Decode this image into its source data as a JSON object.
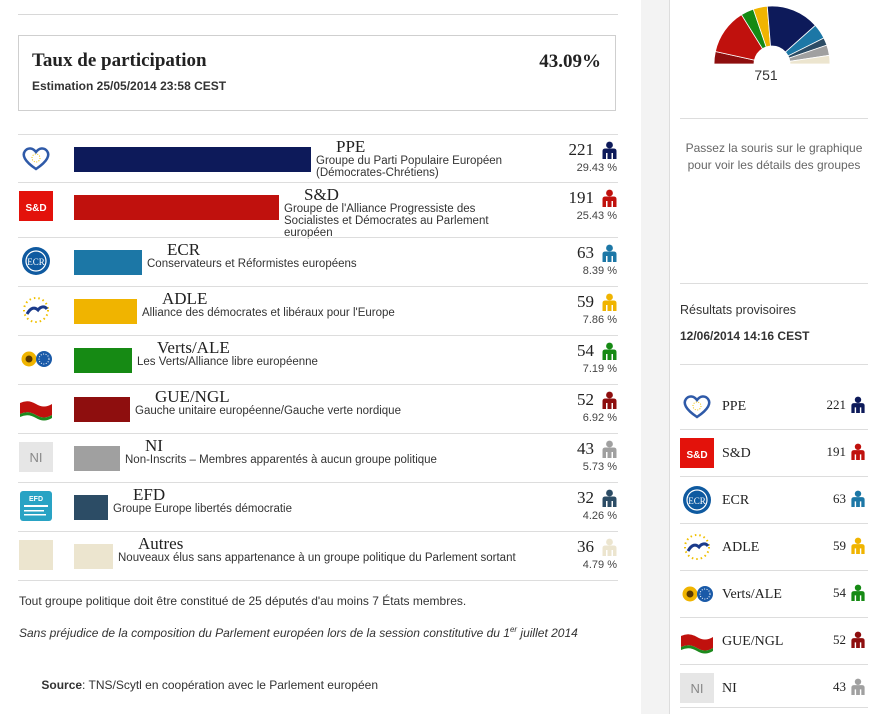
{
  "turnout": {
    "title": "Taux de participation",
    "estimate": "Estimation 25/05/2014 23:58 CEST",
    "value": "43.09%"
  },
  "groups": [
    {
      "abbr": "PPE",
      "desc1": "Groupe du Parti Populaire Européen",
      "desc2": "(Démocrates-Chrétiens)",
      "desc3": "",
      "seats": "221",
      "pct": "29.43 %",
      "color": "#0d1a5a",
      "bar_pct": 29.43,
      "icon": "ppe-heart-logo-icon"
    },
    {
      "abbr": "S&D",
      "desc1": "Groupe de l'Alliance Progressiste des",
      "desc2": "Socialistes et Démocrates au Parlement",
      "desc3": "européen",
      "seats": "191",
      "pct": "25.43 %",
      "color": "#c0110d",
      "bar_pct": 25.43,
      "icon": "sd-logo-icon",
      "logo_text": "S&D"
    },
    {
      "abbr": "ECR",
      "desc1": "Conservateurs et Réformistes européens",
      "desc2": "",
      "desc3": "",
      "seats": "63",
      "pct": "8.39 %",
      "color": "#1c77a6",
      "bar_pct": 8.39,
      "icon": "ecr-logo-icon",
      "logo_text": "ECR"
    },
    {
      "abbr": "ADLE",
      "desc1": "Alliance des démocrates et libéraux pour l'Europe",
      "desc2": "",
      "desc3": "",
      "seats": "59",
      "pct": "7.86 %",
      "color": "#f0b400",
      "bar_pct": 7.86,
      "icon": "adle-logo-icon"
    },
    {
      "abbr": "Verts/ALE",
      "desc1": "Les Verts/Alliance libre européenne",
      "desc2": "",
      "desc3": "",
      "seats": "54",
      "pct": "7.19 %",
      "color": "#168a14",
      "bar_pct": 7.19,
      "icon": "greens-logo-icon"
    },
    {
      "abbr": "GUE/NGL",
      "desc1": "Gauche unitaire européenne/Gauche verte nordique",
      "desc2": "",
      "desc3": "",
      "seats": "52",
      "pct": "6.92 %",
      "color": "#8e0e0e",
      "bar_pct": 6.92,
      "icon": "gue-flag-logo-icon"
    },
    {
      "abbr": "NI",
      "desc1": "Non-Inscrits – Membres apparentés à aucun groupe politique",
      "desc2": "",
      "desc3": "",
      "seats": "43",
      "pct": "5.73 %",
      "color": "#a0a0a0",
      "bar_pct": 5.73,
      "icon": "ni-logo-icon",
      "logo_text": "NI"
    },
    {
      "abbr": "EFD",
      "desc1": "Groupe Europe libertés démocratie",
      "desc2": "",
      "desc3": "",
      "seats": "32",
      "pct": "4.26 %",
      "color": "#2c4c65",
      "bar_pct": 4.26,
      "icon": "efd-logo-icon",
      "logo_text": "EFD"
    },
    {
      "abbr": "Autres",
      "desc1": "Nouveaux élus sans appartenance à un groupe politique du Parlement sortant",
      "desc2": "",
      "desc3": "",
      "seats": "36",
      "pct": "4.79 %",
      "color": "#ece5cf",
      "bar_pct": 4.79,
      "icon": "others-logo-icon"
    }
  ],
  "notes": {
    "rule": "Tout groupe politique doit être constitué de 25 députés d'au moins 7 États membres.",
    "disclaimer_a": "Sans préjudice de la composition du Parlement européen lors de la session constitutive du 1",
    "disclaimer_sup": "er",
    "disclaimer_b": " juillet 2014",
    "source_label": "Source",
    "source_text": ": TNS/Scytl en coopération avec le Parlement européen"
  },
  "sidebar": {
    "total_seats": "751",
    "hover_note": "Passez la souris sur le graphique pour voir les détails des groupes",
    "prov_title": "Résultats provisoires",
    "prov_date": "12/06/2014 14:16 CEST",
    "items": [
      {
        "abbr": "PPE",
        "seats": "221",
        "color": "#0d1a5a"
      },
      {
        "abbr": "S&D",
        "seats": "191",
        "color": "#c0110d"
      },
      {
        "abbr": "ECR",
        "seats": "63",
        "color": "#1c77a6"
      },
      {
        "abbr": "ADLE",
        "seats": "59",
        "color": "#f0b400"
      },
      {
        "abbr": "Verts/ALE",
        "seats": "54",
        "color": "#168a14"
      },
      {
        "abbr": "GUE/NGL",
        "seats": "52",
        "color": "#8e0e0e"
      },
      {
        "abbr": "NI",
        "seats": "43",
        "color": "#a0a0a0"
      }
    ]
  },
  "hemicycle_order": [
    {
      "abbr": "GUE/NGL",
      "seats": 52,
      "color": "#8e0e0e"
    },
    {
      "abbr": "S&D",
      "seats": 191,
      "color": "#c0110d"
    },
    {
      "abbr": "Verts/ALE",
      "seats": 54,
      "color": "#168a14"
    },
    {
      "abbr": "ADLE",
      "seats": 59,
      "color": "#f0b400"
    },
    {
      "abbr": "PPE",
      "seats": 221,
      "color": "#0d1a5a"
    },
    {
      "abbr": "ECR",
      "seats": 63,
      "color": "#1c77a6"
    },
    {
      "abbr": "EFD",
      "seats": 32,
      "color": "#2c4c65"
    },
    {
      "abbr": "NI",
      "seats": 43,
      "color": "#a0a0a0"
    },
    {
      "abbr": "Autres",
      "seats": 36,
      "color": "#ece5cf"
    }
  ]
}
